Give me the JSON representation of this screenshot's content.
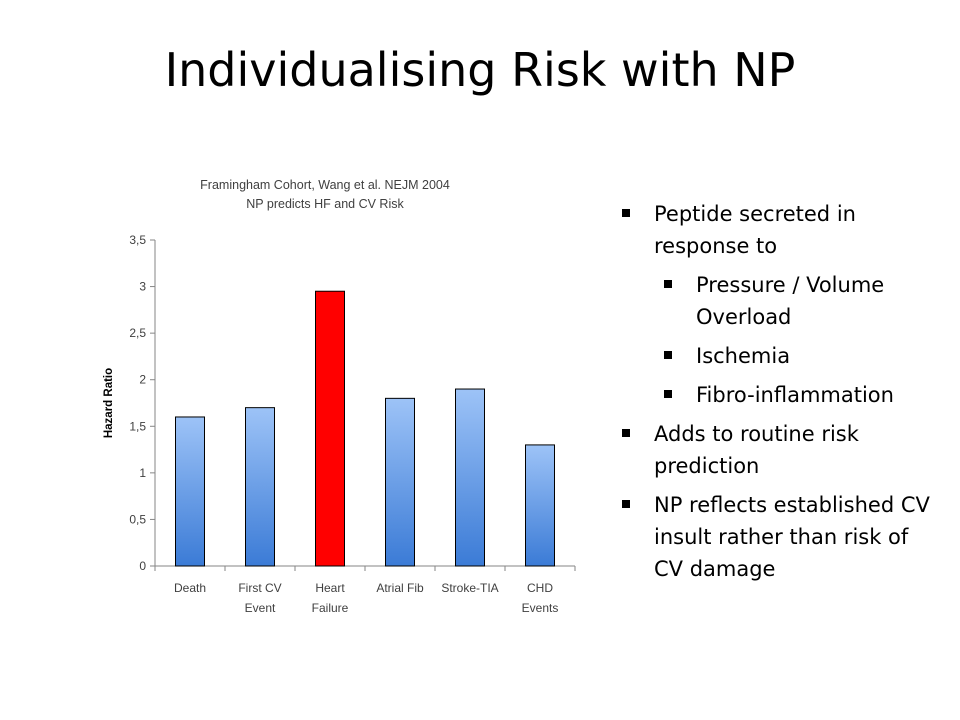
{
  "slide": {
    "title": "Individualising Risk with NP"
  },
  "bullets": [
    {
      "level": 1,
      "text": "Peptide secreted in response to"
    },
    {
      "level": 2,
      "text": "Pressure / Volume Overload"
    },
    {
      "level": 2,
      "text": "Ischemia"
    },
    {
      "level": 2,
      "text": "Fibro-inflammation"
    },
    {
      "level": 1,
      "text": "Adds to routine risk prediction"
    },
    {
      "level": 1,
      "text": "NP reflects established CV insult rather than risk of CV damage"
    }
  ],
  "chart_data": {
    "type": "bar",
    "title": "Framingham Cohort, Wang et al. NEJM 2004",
    "subtitle": "NP predicts HF and CV Risk",
    "xlabel": "",
    "ylabel": "Hazard Ratio",
    "categories": [
      [
        "Death"
      ],
      [
        "First CV",
        "Event"
      ],
      [
        "Heart",
        "Failure"
      ],
      [
        "Atrial Fib"
      ],
      [
        "Stroke-TIA"
      ],
      [
        "CHD",
        "Events"
      ]
    ],
    "values": [
      1.6,
      1.7,
      2.95,
      1.8,
      1.9,
      1.3
    ],
    "ylim": [
      0,
      3.5
    ],
    "yticks": [
      "0",
      "0,5",
      "1",
      "1,5",
      "2",
      "2,5",
      "3",
      "3,5"
    ],
    "grid": false,
    "colors": {
      "default_top": "#9dc3f7",
      "default_bottom": "#3b7bd6",
      "highlight": "#ff0000",
      "highlight_index": 2
    }
  }
}
